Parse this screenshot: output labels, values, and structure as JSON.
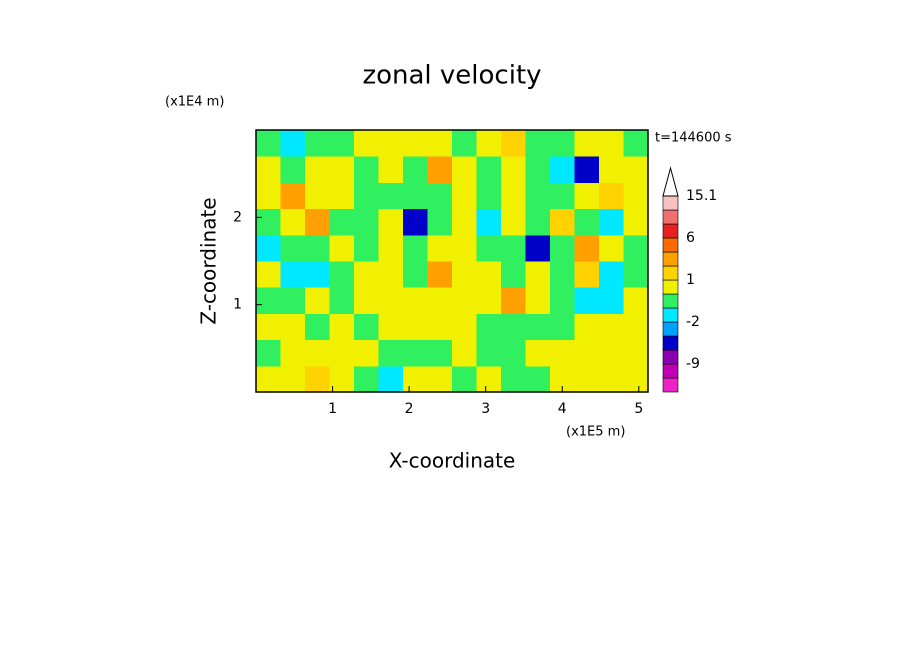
{
  "chart_data": {
    "type": "contour",
    "title": "zonal velocity",
    "xlabel": "X-coordinate",
    "ylabel": "Z-coordinate",
    "x_unit": "(x1E5 m)",
    "y_unit": "(x1E4 m)",
    "annotation": "t=144600 s",
    "xlim": [
      0,
      5.12
    ],
    "ylim": [
      0,
      3
    ],
    "xticks": [
      1,
      2,
      3,
      4,
      5
    ],
    "yticks": [
      1,
      2
    ],
    "x": [
      0.16,
      0.48,
      0.8,
      1.12,
      1.44,
      1.76,
      2.08,
      2.4,
      2.72,
      3.04,
      3.36,
      3.68,
      4.0,
      4.32,
      4.64,
      4.96
    ],
    "y": [
      0.15,
      0.45,
      0.75,
      1.05,
      1.35,
      1.65,
      1.95,
      2.25,
      2.55,
      2.85
    ],
    "z": [
      [
        0.5,
        0.5,
        1.5,
        0.5,
        -0.5,
        -1.5,
        0.5,
        0.5,
        -0.5,
        0.5,
        -0.5,
        -0.5,
        0.5,
        0.5,
        0.5,
        0.5
      ],
      [
        -0.5,
        0.5,
        0.5,
        0.5,
        0.5,
        -0.5,
        -0.5,
        -0.5,
        0.5,
        -0.5,
        -0.5,
        0.5,
        0.5,
        0.5,
        0.5,
        0.5
      ],
      [
        0.5,
        0.5,
        -0.5,
        0.5,
        -0.5,
        0.5,
        0.5,
        0.5,
        0.5,
        -0.5,
        -0.5,
        -0.5,
        -0.5,
        0.5,
        0.5,
        0.5
      ],
      [
        -0.5,
        -0.5,
        0.5,
        -0.5,
        0.5,
        0.5,
        0.5,
        0.5,
        0.5,
        0.5,
        2,
        0.5,
        -0.5,
        -1.5,
        -1.5,
        0.5
      ],
      [
        0.5,
        -1.5,
        -1.5,
        -0.5,
        0.5,
        0.5,
        -0.5,
        2,
        0.5,
        0.5,
        -0.5,
        0.5,
        -0.5,
        1.5,
        -1.5,
        -0.5
      ],
      [
        -1.5,
        -0.5,
        -0.5,
        0.5,
        -0.5,
        0.5,
        -0.5,
        0.5,
        0.5,
        -0.5,
        -0.5,
        -4,
        -0.5,
        2.5,
        0.5,
        -0.5
      ],
      [
        -0.5,
        0.5,
        2,
        -0.5,
        -0.5,
        0.5,
        -4,
        -0.5,
        0.5,
        -1.5,
        0.5,
        -0.5,
        1.5,
        -0.5,
        -1.5,
        0.5
      ],
      [
        0.5,
        2,
        0.5,
        0.5,
        -0.5,
        -0.5,
        -0.5,
        -0.5,
        0.5,
        -0.5,
        0.5,
        -0.5,
        -0.5,
        0.5,
        1.5,
        0.5
      ],
      [
        0.5,
        -0.5,
        0.5,
        0.5,
        -0.5,
        0.5,
        -0.5,
        2.5,
        0.5,
        -0.5,
        0.5,
        -0.5,
        -1.5,
        -4,
        0.5,
        0.5
      ],
      [
        -0.5,
        -1.5,
        -0.5,
        -0.5,
        0.5,
        0.5,
        0.5,
        0.5,
        -0.5,
        0.5,
        1.5,
        -0.5,
        -0.5,
        0.5,
        0.5,
        -0.5
      ]
    ],
    "levels": [
      -15,
      -12,
      -9,
      -6,
      -3,
      -2,
      -1,
      0,
      1,
      2,
      3,
      6,
      9,
      12,
      15.1
    ],
    "colors": [
      "#f020c8",
      "#c000b4",
      "#8c00b4",
      "#0000c8",
      "#00a0ff",
      "#00e8ff",
      "#30f060",
      "#f0f000",
      "#ffd200",
      "#ffa000",
      "#ff6a00",
      "#e82020",
      "#f07070",
      "#f8c0c0"
    ],
    "colorbar_ticks": [
      -9,
      -2,
      1,
      6,
      15.1
    ]
  }
}
